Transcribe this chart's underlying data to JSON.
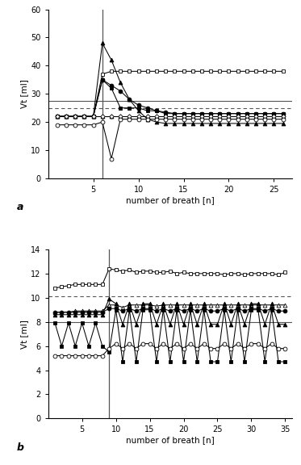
{
  "panel_a": {
    "xlim": [
      0,
      27
    ],
    "ylim": [
      0,
      60
    ],
    "yticks": [
      0,
      10,
      20,
      30,
      40,
      50,
      60
    ],
    "xticks": [
      5,
      10,
      15,
      20,
      25
    ],
    "vline_x": 6,
    "hline_solid": 27.5,
    "hline_dotted": 25.0,
    "ylabel": "Vt [ml]",
    "xlabel": "number of breath [n]",
    "label": "a",
    "series": [
      {
        "name": "open_square",
        "marker": "s",
        "filled": false,
        "x": [
          1,
          2,
          3,
          4,
          5,
          6,
          7,
          8,
          9,
          10,
          11,
          12,
          13,
          14,
          15,
          16,
          17,
          18,
          19,
          20,
          21,
          22,
          23,
          24,
          25,
          26
        ],
        "y": [
          22,
          22,
          22,
          22,
          22,
          37,
          38,
          38,
          38,
          38,
          38,
          38,
          38,
          38,
          38,
          38,
          38,
          38,
          38,
          38,
          38,
          38,
          38,
          38,
          38,
          38
        ]
      },
      {
        "name": "filled_circle",
        "marker": "o",
        "filled": true,
        "x": [
          1,
          2,
          3,
          4,
          5,
          6,
          7,
          8,
          9,
          10,
          11,
          12,
          13,
          14,
          15,
          16,
          17,
          18,
          19,
          20,
          21,
          22,
          23,
          24,
          25,
          26
        ],
        "y": [
          22,
          22,
          22,
          22,
          22,
          35,
          33,
          31,
          28,
          26,
          25,
          24,
          23.5,
          23,
          23,
          23,
          23,
          23,
          23,
          23,
          23,
          23,
          23,
          23,
          23,
          23
        ]
      },
      {
        "name": "filled_square",
        "marker": "s",
        "filled": true,
        "x": [
          1,
          2,
          3,
          4,
          5,
          6,
          7,
          8,
          9,
          10,
          11,
          12,
          13,
          14,
          15,
          16,
          17,
          18,
          19,
          20,
          21,
          22,
          23,
          24,
          25,
          26
        ],
        "y": [
          22,
          22,
          22,
          22,
          22,
          35,
          32,
          25,
          25,
          25,
          24,
          24,
          23,
          23,
          23,
          23,
          23,
          23,
          23,
          23,
          23,
          23,
          23,
          23,
          23,
          23
        ]
      },
      {
        "name": "filled_triangle",
        "marker": "^",
        "filled": true,
        "x": [
          1,
          2,
          3,
          4,
          5,
          6,
          7,
          8,
          9,
          10,
          11,
          12,
          13,
          14,
          15,
          16,
          17,
          18,
          19,
          20,
          21,
          22,
          23,
          24,
          25,
          26
        ],
        "y": [
          22,
          22,
          22,
          22,
          22,
          48,
          42,
          34,
          28,
          24,
          21,
          20,
          19.5,
          19.5,
          19.5,
          19.5,
          19.5,
          19.5,
          19.5,
          19.5,
          19.5,
          19.5,
          19.5,
          19.5,
          19.5,
          19.5
        ]
      },
      {
        "name": "open_triangle",
        "marker": "^",
        "filled": false,
        "x": [
          1,
          2,
          3,
          4,
          5,
          6,
          7,
          8,
          9,
          10,
          11,
          12,
          13,
          14,
          15,
          16,
          17,
          18,
          19,
          20,
          21,
          22,
          23,
          24,
          25,
          26
        ],
        "y": [
          22,
          22,
          22,
          22,
          22,
          22,
          22,
          22,
          22,
          22,
          22,
          22,
          22,
          22,
          22,
          22,
          22,
          22,
          22,
          22,
          22,
          22,
          22,
          22,
          22,
          22
        ]
      },
      {
        "name": "open_diamond",
        "marker": "D",
        "filled": false,
        "x": [
          1,
          2,
          3,
          4,
          5,
          6,
          7,
          8,
          9,
          10,
          11,
          12,
          13,
          14,
          15,
          16,
          17,
          18,
          19,
          20,
          21,
          22,
          23,
          24,
          25,
          26
        ],
        "y": [
          22,
          22,
          22,
          22,
          22,
          22,
          22,
          22,
          22,
          22,
          22,
          22,
          22,
          22,
          22,
          22,
          22,
          22,
          22,
          22,
          22,
          22,
          22,
          22,
          22,
          22
        ]
      },
      {
        "name": "open_circle",
        "marker": "o",
        "filled": false,
        "x": [
          1,
          2,
          3,
          4,
          5,
          6,
          7,
          8,
          9,
          10,
          11,
          12,
          13,
          14,
          15,
          16,
          17,
          18,
          19,
          20,
          21,
          22,
          23,
          24,
          25,
          26
        ],
        "y": [
          19,
          19,
          19,
          19,
          19,
          20,
          7,
          21,
          21,
          21,
          21,
          21,
          21,
          21,
          21,
          21,
          21,
          21,
          21,
          21,
          21,
          21,
          21,
          21,
          21,
          21
        ]
      }
    ]
  },
  "panel_b": {
    "xlim": [
      0,
      36
    ],
    "ylim": [
      0,
      14
    ],
    "yticks": [
      0,
      2,
      4,
      6,
      8,
      10,
      12,
      14
    ],
    "xticks": [
      5,
      10,
      15,
      20,
      25,
      30,
      35
    ],
    "vline_x": 9,
    "hline_solid": 8.0,
    "hline_dotted": 10.1,
    "ylabel": "Vt [ml]",
    "xlabel": "number of breath [n]",
    "label": "b",
    "series": [
      {
        "name": "open_square",
        "marker": "s",
        "filled": false,
        "x": [
          1,
          2,
          3,
          4,
          5,
          6,
          7,
          8,
          9,
          10,
          11,
          12,
          13,
          14,
          15,
          16,
          17,
          18,
          19,
          20,
          21,
          22,
          23,
          24,
          25,
          26,
          27,
          28,
          29,
          30,
          31,
          32,
          33,
          34,
          35
        ],
        "y": [
          10.8,
          10.9,
          11.0,
          11.1,
          11.1,
          11.1,
          11.1,
          11.1,
          12.4,
          12.3,
          12.2,
          12.3,
          12.1,
          12.2,
          12.2,
          12.1,
          12.1,
          12.2,
          12.0,
          12.1,
          12.0,
          12.0,
          12.0,
          12.0,
          12.0,
          11.9,
          12.0,
          12.0,
          11.9,
          12.0,
          12.0,
          12.0,
          12.0,
          11.9,
          12.1
        ]
      },
      {
        "name": "open_triangle",
        "marker": "^",
        "filled": false,
        "x": [
          1,
          2,
          3,
          4,
          5,
          6,
          7,
          8,
          9,
          10,
          11,
          12,
          13,
          14,
          15,
          16,
          17,
          18,
          19,
          20,
          21,
          22,
          23,
          24,
          25,
          26,
          27,
          28,
          29,
          30,
          31,
          32,
          33,
          34,
          35
        ],
        "y": [
          8.8,
          8.8,
          8.8,
          8.9,
          8.9,
          8.9,
          8.9,
          8.9,
          9.4,
          9.4,
          9.2,
          9.4,
          9.4,
          9.4,
          9.4,
          9.3,
          9.4,
          9.4,
          9.4,
          9.4,
          9.4,
          9.4,
          9.4,
          9.4,
          9.4,
          9.4,
          9.4,
          9.4,
          9.4,
          9.4,
          9.4,
          9.4,
          9.4,
          9.4,
          9.4
        ]
      },
      {
        "name": "filled_circle",
        "marker": "o",
        "filled": true,
        "x": [
          1,
          2,
          3,
          4,
          5,
          6,
          7,
          8,
          9,
          10,
          11,
          12,
          13,
          14,
          15,
          16,
          17,
          18,
          19,
          20,
          21,
          22,
          23,
          24,
          25,
          26,
          27,
          28,
          29,
          30,
          31,
          32,
          33,
          34,
          35
        ],
        "y": [
          8.8,
          8.8,
          8.8,
          8.8,
          8.8,
          8.8,
          8.8,
          8.8,
          9.1,
          9.1,
          8.9,
          9.1,
          8.9,
          9.1,
          9.1,
          8.9,
          9.1,
          8.9,
          9.1,
          8.9,
          9.1,
          8.9,
          9.1,
          8.9,
          8.9,
          9.1,
          8.9,
          9.1,
          8.9,
          9.1,
          9.1,
          8.9,
          9.1,
          8.9,
          8.9
        ]
      },
      {
        "name": "filled_triangle",
        "marker": "^",
        "filled": true,
        "x": [
          1,
          2,
          3,
          4,
          5,
          6,
          7,
          8,
          9,
          10,
          11,
          12,
          13,
          14,
          15,
          16,
          17,
          18,
          19,
          20,
          21,
          22,
          23,
          24,
          25,
          26,
          27,
          28,
          29,
          30,
          31,
          32,
          33,
          34,
          35
        ],
        "y": [
          8.6,
          8.6,
          8.6,
          8.6,
          8.6,
          8.6,
          8.6,
          8.6,
          9.9,
          9.5,
          7.8,
          9.5,
          7.8,
          9.5,
          9.5,
          7.8,
          9.5,
          7.8,
          9.5,
          7.8,
          9.5,
          7.8,
          9.5,
          7.8,
          7.8,
          9.5,
          7.8,
          9.5,
          7.8,
          9.5,
          9.5,
          7.8,
          9.5,
          7.8,
          7.8
        ]
      },
      {
        "name": "filled_square",
        "marker": "s",
        "filled": true,
        "x": [
          1,
          2,
          3,
          4,
          5,
          6,
          7,
          8,
          9,
          10,
          11,
          12,
          13,
          14,
          15,
          16,
          17,
          18,
          19,
          20,
          21,
          22,
          23,
          24,
          25,
          26,
          27,
          28,
          29,
          30,
          31,
          32,
          33,
          34,
          35
        ],
        "y": [
          7.9,
          6.0,
          7.9,
          6.0,
          7.9,
          6.0,
          7.9,
          6.0,
          5.5,
          9.0,
          4.7,
          9.0,
          4.7,
          9.0,
          9.0,
          4.7,
          9.0,
          4.7,
          9.0,
          4.7,
          9.0,
          4.7,
          9.0,
          4.7,
          4.7,
          9.0,
          4.7,
          9.0,
          4.7,
          9.0,
          9.0,
          4.7,
          9.0,
          4.7,
          4.7
        ]
      },
      {
        "name": "open_circle",
        "marker": "o",
        "filled": false,
        "x": [
          1,
          2,
          3,
          4,
          5,
          6,
          7,
          8,
          9,
          10,
          11,
          12,
          13,
          14,
          15,
          16,
          17,
          18,
          19,
          20,
          21,
          22,
          23,
          24,
          25,
          26,
          27,
          28,
          29,
          30,
          31,
          32,
          33,
          34,
          35
        ],
        "y": [
          5.2,
          5.2,
          5.2,
          5.2,
          5.2,
          5.2,
          5.2,
          5.2,
          5.8,
          6.2,
          5.8,
          6.2,
          5.8,
          6.2,
          6.2,
          5.8,
          6.2,
          5.8,
          6.2,
          5.8,
          6.2,
          5.8,
          6.2,
          5.8,
          5.8,
          6.2,
          5.8,
          6.2,
          5.8,
          6.2,
          6.2,
          5.8,
          6.2,
          5.8,
          5.8
        ]
      }
    ]
  }
}
